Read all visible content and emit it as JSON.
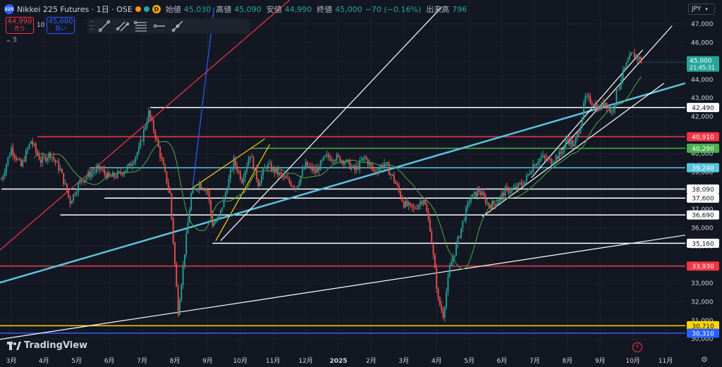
{
  "header": {
    "badge": "225",
    "title": "Nikkei 225 Futures · 1日 · OSE",
    "status_colors": [
      "#ff9800",
      "#26a69a"
    ],
    "d_badge": "D",
    "open_label": "始値",
    "open": "45,030",
    "high_label": "高値",
    "high": "45,090",
    "low_label": "安値",
    "low": "44,990",
    "close_label": "終値",
    "close": "45,000",
    "change": "−70 (−0.16%)",
    "volume_label": "出来高",
    "volume": "796"
  },
  "trade": {
    "sell_price": "44,990",
    "sell_label": "売り",
    "qty": "10",
    "buy_price": "45,000",
    "buy_label": "買い"
  },
  "collapse_label": "5",
  "toolbar": {
    "tools": [
      "trend-line-icon",
      "parallel-channel-icon",
      "fib-retracement-icon",
      "horizontal-ray-icon",
      "ray-icon"
    ]
  },
  "currency": "JPY",
  "brand": "TradingView",
  "countdown": "21:45:31",
  "colors": {
    "bg": "#131722",
    "up": "#26a69a",
    "down": "#ef5350",
    "ma": "#43a047",
    "white": "#ffffff",
    "red": "#f23645",
    "green": "#4caf50",
    "cyan": "#5bc5df",
    "yellow": "#ffd600",
    "blue": "#2962ff",
    "text": "#d1d4dc"
  },
  "chart_data": {
    "type": "candlestick",
    "symbol": "Nikkei 225 Futures",
    "interval": "1日",
    "y_ticks": [
      30000,
      31000,
      32000,
      33000,
      34000,
      35000,
      36000,
      37000,
      38000,
      39000,
      40000,
      41000,
      42000,
      43000,
      44000,
      45000,
      46000,
      47000
    ],
    "ylim": [
      29800,
      47900
    ],
    "x_tick_labels": [
      {
        "label": "3月",
        "month": 3
      },
      {
        "label": "4月",
        "month": 4
      },
      {
        "label": "5月",
        "month": 5
      },
      {
        "label": "6月",
        "month": 6
      },
      {
        "label": "7月",
        "month": 7
      },
      {
        "label": "8月",
        "month": 8
      },
      {
        "label": "9月",
        "month": 9
      },
      {
        "label": "10月",
        "month": 10
      },
      {
        "label": "11月",
        "month": 11
      },
      {
        "label": "12月",
        "month": 12
      },
      {
        "label": "2025",
        "month": 13
      },
      {
        "label": "2月",
        "month": 14
      },
      {
        "label": "3月",
        "month": 15
      },
      {
        "label": "4月",
        "month": 16
      },
      {
        "label": "5月",
        "month": 17
      },
      {
        "label": "6月",
        "month": 18
      },
      {
        "label": "7月",
        "month": 19
      },
      {
        "label": "8月",
        "month": 20
      },
      {
        "label": "9月",
        "month": 21
      },
      {
        "label": "10月",
        "month": 22
      },
      {
        "label": "11月",
        "month": 23
      }
    ],
    "price_path": [
      [
        2.7,
        38600
      ],
      [
        3.0,
        40300
      ],
      [
        3.3,
        39300
      ],
      [
        3.6,
        40700
      ],
      [
        3.9,
        39600
      ],
      [
        4.2,
        40000
      ],
      [
        4.5,
        39100
      ],
      [
        4.8,
        37400
      ],
      [
        5.1,
        38500
      ],
      [
        5.4,
        38900
      ],
      [
        5.7,
        39200
      ],
      [
        6.0,
        38700
      ],
      [
        6.3,
        38900
      ],
      [
        6.6,
        39300
      ],
      [
        6.9,
        40200
      ],
      [
        7.2,
        42200
      ],
      [
        7.4,
        41000
      ],
      [
        7.6,
        39600
      ],
      [
        7.85,
        37800
      ],
      [
        8.1,
        31500
      ],
      [
        8.3,
        34700
      ],
      [
        8.5,
        37800
      ],
      [
        8.75,
        38400
      ],
      [
        9.0,
        38000
      ],
      [
        9.15,
        36200
      ],
      [
        9.35,
        36500
      ],
      [
        9.55,
        37900
      ],
      [
        9.8,
        39600
      ],
      [
        10.05,
        38600
      ],
      [
        10.3,
        40000
      ],
      [
        10.55,
        38400
      ],
      [
        10.8,
        39400
      ],
      [
        11.1,
        39000
      ],
      [
        11.4,
        38600
      ],
      [
        11.7,
        38200
      ],
      [
        12.0,
        39400
      ],
      [
        12.3,
        39000
      ],
      [
        12.6,
        39800
      ],
      [
        12.9,
        39800
      ],
      [
        13.2,
        39600
      ],
      [
        13.5,
        39100
      ],
      [
        13.8,
        39800
      ],
      [
        14.1,
        39000
      ],
      [
        14.4,
        39500
      ],
      [
        14.7,
        38600
      ],
      [
        15.0,
        37300
      ],
      [
        15.3,
        37000
      ],
      [
        15.6,
        37600
      ],
      [
        15.8,
        36000
      ],
      [
        16.05,
        32100
      ],
      [
        16.2,
        31300
      ],
      [
        16.4,
        33800
      ],
      [
        16.6,
        35000
      ],
      [
        16.8,
        36300
      ],
      [
        17.0,
        37500
      ],
      [
        17.3,
        38000
      ],
      [
        17.6,
        37200
      ],
      [
        17.85,
        37400
      ],
      [
        18.1,
        38000
      ],
      [
        18.4,
        38100
      ],
      [
        18.7,
        38500
      ],
      [
        18.95,
        39400
      ],
      [
        19.2,
        39800
      ],
      [
        19.5,
        39600
      ],
      [
        19.8,
        40000
      ],
      [
        20.0,
        40800
      ],
      [
        20.2,
        40400
      ],
      [
        20.4,
        41600
      ],
      [
        20.55,
        43000
      ],
      [
        20.75,
        42800
      ],
      [
        20.95,
        42400
      ],
      [
        21.15,
        42800
      ],
      [
        21.35,
        42200
      ],
      [
        21.55,
        43600
      ],
      [
        21.75,
        44600
      ],
      [
        21.95,
        45300
      ],
      [
        22.1,
        45300
      ],
      [
        22.25,
        45000
      ]
    ],
    "moving_average_color": "#43a047",
    "horizontal_levels": [
      {
        "price": 42490,
        "label": "42,490",
        "color": "#ffffff",
        "start_month": 7.25
      },
      {
        "price": 40910,
        "label": "40,910",
        "color": "#f23645",
        "start_month": 3.8
      },
      {
        "price": 40290,
        "label": "40,290",
        "color": "#4caf50",
        "start_month": 10.3
      },
      {
        "price": 39240,
        "label": "39,240",
        "color": "#5bc5df",
        "start_month": 5.4
      },
      {
        "price": 38090,
        "label": "38,090",
        "color": "#ffffff",
        "start_month": 2.7
      },
      {
        "price": 37600,
        "label": "37,600",
        "color": "#ffffff",
        "start_month": 5.85
      },
      {
        "price": 36690,
        "label": "36,690",
        "color": "#ffffff",
        "start_month": 4.5
      },
      {
        "price": 35160,
        "label": "35,160",
        "color": "#ffffff",
        "start_month": 9.15
      },
      {
        "price": 33930,
        "label": "33,930",
        "color": "#f23645",
        "start_month": 2.0
      },
      {
        "price": 30710,
        "label": "30,710",
        "color": "#ffd600",
        "start_month": 2.0
      },
      {
        "price": 30310,
        "label": "30,310",
        "color": "#2962ff",
        "start_month": 2.0
      }
    ],
    "current_price": {
      "label": "45,000",
      "color": "#26a69a"
    },
    "trendlines": [
      {
        "color": "#f23645",
        "from": [
          2.0,
          33800
        ],
        "to": [
          14.6,
          53000
        ]
      },
      {
        "color": "#2962ff",
        "from": [
          8.55,
          38300
        ],
        "to": [
          9.2,
          47900
        ]
      },
      {
        "color": "#ffd600",
        "from": [
          8.5,
          38100
        ],
        "to": [
          10.75,
          40800
        ]
      },
      {
        "color": "#ffd600",
        "from": [
          9.25,
          35300
        ],
        "to": [
          10.9,
          40500
        ]
      },
      {
        "color": "#5bc5df",
        "from": [
          2.0,
          32700
        ],
        "to": [
          23.6,
          43800
        ]
      },
      {
        "color": "#ffffff",
        "from": [
          2.0,
          29800
        ],
        "to": [
          23.6,
          35600
        ]
      },
      {
        "color": "#ffffff",
        "from": [
          9.4,
          35300
        ],
        "to": [
          16.15,
          47900
        ]
      },
      {
        "color": "#ffffff",
        "from": [
          18.9,
          38700
        ],
        "to": [
          22.3,
          45600
        ]
      },
      {
        "color": "#ffffff",
        "from": [
          19.8,
          40200
        ],
        "to": [
          23.2,
          46900
        ]
      },
      {
        "color": "#ffffff",
        "from": [
          17.4,
          36600
        ],
        "to": [
          22.95,
          43800
        ]
      }
    ]
  }
}
